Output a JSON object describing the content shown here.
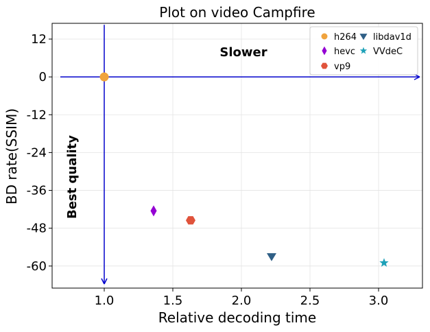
{
  "chart_data": {
    "type": "scatter",
    "title": "Plot on video Campfire",
    "xlabel": "Relative decoding time",
    "ylabel": "BD rate(SSIM)",
    "xlim": [
      0.62,
      3.32
    ],
    "ylim": [
      -67,
      17
    ],
    "xticks": [
      1.0,
      1.5,
      2.0,
      2.5,
      3.0
    ],
    "xtick_labels": [
      "1.0",
      "1.5",
      "2.0",
      "2.5",
      "3.0"
    ],
    "yticks": [
      12,
      0,
      -12,
      -24,
      -36,
      -48,
      -60
    ],
    "ytick_labels": [
      "12",
      "0",
      "-12",
      "-24",
      "-36",
      "-48",
      "-60"
    ],
    "grid": true,
    "legend_position": "top-right",
    "series": [
      {
        "name": "h264",
        "marker": "circle",
        "color": "#F0A33D",
        "x": 1.0,
        "y": 0
      },
      {
        "name": "hevc",
        "marker": "thin-diamond",
        "color": "#9400D3",
        "x": 1.36,
        "y": -42.5
      },
      {
        "name": "vp9",
        "marker": "hexagon",
        "color": "#E0533B",
        "x": 1.63,
        "y": -45.5
      },
      {
        "name": "libdav1d",
        "marker": "triangle-down",
        "color": "#2F5F86",
        "x": 2.22,
        "y": -57
      },
      {
        "name": "VVdeC",
        "marker": "star",
        "color": "#1DA1B8",
        "x": 3.04,
        "y": -59
      }
    ],
    "annotations": [
      {
        "text": "Slower",
        "direction": "right",
        "x_from": 0.68,
        "x_to": 3.3,
        "y": 0
      },
      {
        "text": "Best quality",
        "direction": "down",
        "x": 1.0,
        "y_from": 16.5,
        "y_to": -67
      }
    ],
    "arrow_color": "#0000CC"
  }
}
